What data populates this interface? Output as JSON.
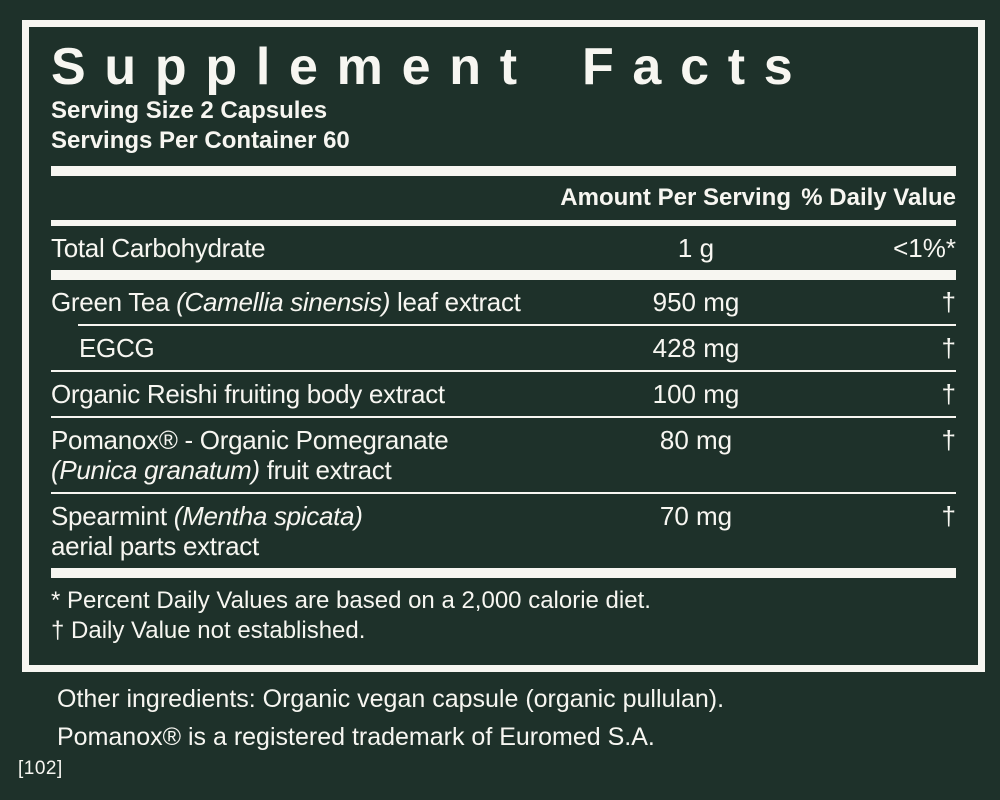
{
  "colors": {
    "bg": "#1e312a",
    "fg": "#f7f6f1"
  },
  "panel": {
    "title": "Supplement Facts",
    "serving_size": "Serving Size 2 Capsules",
    "servings_per_container": "Servings Per Container 60",
    "columns": {
      "amount": "Amount Per Serving",
      "daily_value": "% Daily Value"
    },
    "rows": [
      {
        "pre": "Total Carbohydrate",
        "amount": "1 g",
        "dv": "<1%*"
      },
      {
        "pre": "Green Tea ",
        "it1": "(Camellia sinensis)",
        "post": " leaf extract",
        "amount": "950 mg",
        "dv": "†"
      },
      {
        "pre": "EGCG",
        "amount": "428 mg",
        "dv": "†"
      },
      {
        "pre": "Organic Reishi fruiting body extract",
        "amount": "100 mg",
        "dv": "†"
      },
      {
        "pre": "Pomanox® - Organic Pomegranate",
        "it2": "(Punica granatum)",
        "post2": " fruit extract",
        "amount": "80 mg",
        "dv": "†"
      },
      {
        "pre": "Spearmint ",
        "it1": "(Mentha spicata)",
        "post2": "aerial parts extract",
        "amount": "70 mg",
        "dv": "†"
      }
    ],
    "footnotes": [
      "* Percent Daily Values are based on a 2,000 calorie diet.",
      "† Daily Value not established."
    ]
  },
  "below": {
    "other_ingredients": "Other ingredients: Organic vegan capsule (organic pullulan).",
    "trademark": "Pomanox® is a registered trademark of Euromed S.A.",
    "corner_ref": "[102]"
  }
}
